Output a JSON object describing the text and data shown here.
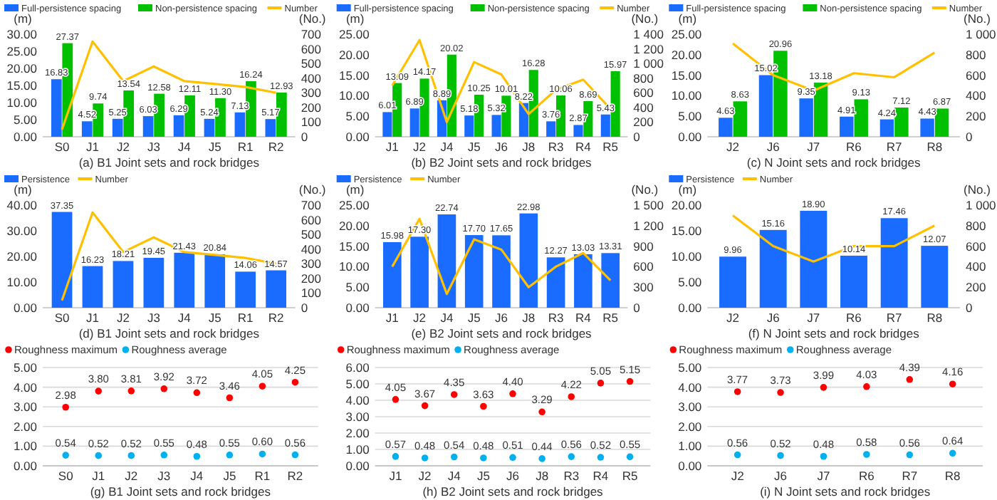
{
  "chart_data": [
    {
      "type": "bar",
      "title": "(a) B1 Joint sets and rock bridges",
      "ylabel": "(m)",
      "y2label": "(No.)",
      "legend": "top",
      "categories": [
        "S0",
        "J1",
        "J2",
        "J3",
        "J4",
        "J5",
        "R1",
        "R2"
      ],
      "ylim": [
        0,
        30
      ],
      "yticks": [
        {
          "value": 0,
          "label": "0.00"
        },
        {
          "value": 5,
          "label": "5.00"
        },
        {
          "value": 10,
          "label": "10.00"
        },
        {
          "value": 15,
          "label": "15.00"
        },
        {
          "value": 20,
          "label": "20.00"
        },
        {
          "value": 25,
          "label": "25.00"
        },
        {
          "value": 30,
          "label": "30.00"
        }
      ],
      "y2lim": [
        0,
        700
      ],
      "y2ticks": [
        0,
        100,
        200,
        300,
        400,
        500,
        600,
        700
      ],
      "series": [
        {
          "name": "Full-persistence spacing",
          "type": "bar",
          "color": "#1a6bff",
          "values": [
            16.83,
            4.52,
            5.25,
            6.03,
            6.29,
            5.24,
            7.13,
            5.17
          ],
          "value_labels": [
            "16.83",
            "4.52",
            "5.25",
            "6.03",
            "6.29",
            "5.24",
            "7.13",
            "5.17"
          ]
        },
        {
          "name": "Non-persistence spacing",
          "type": "bar",
          "color": "#00c000",
          "values": [
            27.37,
            9.74,
            13.54,
            12.58,
            12.11,
            11.3,
            16.24,
            12.93
          ],
          "value_labels": [
            "27.37",
            "9.74",
            "13.54",
            "12.58",
            "12.11",
            "11.30",
            "16.24",
            "12.93"
          ]
        },
        {
          "name": "Number",
          "type": "line",
          "axis": "y2",
          "color": "#ffc000",
          "values": [
            50,
            650,
            380,
            480,
            380,
            360,
            340,
            300
          ]
        }
      ]
    },
    {
      "type": "bar",
      "title": "(b) B2 Joint sets and rock bridges",
      "ylabel": "(m)",
      "y2label": "(No.)",
      "legend": "top",
      "categories": [
        "J1",
        "J2",
        "J4",
        "J5",
        "J6",
        "J8",
        "R3",
        "R4",
        "R5"
      ],
      "ylim": [
        0,
        25
      ],
      "yticks": [
        {
          "value": 0,
          "label": "0.00"
        },
        {
          "value": 5,
          "label": "5.00"
        },
        {
          "value": 10,
          "label": "10.00"
        },
        {
          "value": 15,
          "label": "15.00"
        },
        {
          "value": 20,
          "label": "20.00"
        },
        {
          "value": 25,
          "label": "25.00"
        }
      ],
      "y2lim": [
        0,
        1400
      ],
      "y2ticks": [
        0,
        200,
        400,
        600,
        800,
        {
          "value": 1000,
          "label": "1 000"
        },
        {
          "value": 1200,
          "label": "1 200"
        },
        {
          "value": 1400,
          "label": "1 400"
        }
      ],
      "series": [
        {
          "name": "Full-persistence spacing",
          "type": "bar",
          "color": "#1a6bff",
          "values": [
            6.01,
            6.89,
            8.89,
            5.18,
            5.32,
            8.22,
            3.76,
            2.87,
            5.43
          ],
          "value_labels": [
            "6.01",
            "6.89",
            "8.89",
            "5.18",
            "5.32",
            "8.22",
            "3.76",
            "2.87",
            "5.43"
          ]
        },
        {
          "name": "Non-persistence spacing",
          "type": "bar",
          "color": "#00c000",
          "values": [
            13.09,
            14.17,
            20.02,
            10.25,
            10.01,
            16.28,
            10.06,
            8.69,
            15.97
          ],
          "value_labels": [
            "13.09",
            "14.17",
            "20.02",
            "10.25",
            "10.01",
            "16.28",
            "10.06",
            "8.69",
            "15.97"
          ]
        },
        {
          "name": "Number",
          "type": "line",
          "axis": "y2",
          "color": "#ffc000",
          "values": [
            700,
            1320,
            200,
            1020,
            850,
            310,
            640,
            780,
            380
          ]
        }
      ]
    },
    {
      "type": "bar",
      "title": "(c) N Joint sets and rock bridges",
      "ylabel": "(m)",
      "y2label": "(No.)",
      "legend": "top",
      "categories": [
        "J2",
        "J6",
        "J7",
        "R6",
        "R7",
        "R8"
      ],
      "ylim": [
        0,
        25
      ],
      "yticks": [
        {
          "value": 0,
          "label": "0.00"
        },
        {
          "value": 5,
          "label": "5.00"
        },
        {
          "value": 10,
          "label": "10.00"
        },
        {
          "value": 15,
          "label": "15.00"
        },
        {
          "value": 20,
          "label": "20.00"
        },
        {
          "value": 25,
          "label": "25.00"
        }
      ],
      "y2lim": [
        0,
        1000
      ],
      "y2ticks": [
        0,
        200,
        400,
        600,
        800,
        {
          "value": 1000,
          "label": "1 000"
        }
      ],
      "series": [
        {
          "name": "Full-persistence spacing",
          "type": "bar",
          "color": "#1a6bff",
          "values": [
            4.63,
            15.02,
            9.35,
            4.91,
            4.24,
            4.43
          ],
          "value_labels": [
            "4.63",
            "15.02",
            "9.35",
            "4.91",
            "4.24",
            "4.43"
          ]
        },
        {
          "name": "Non-persistence spacing",
          "type": "bar",
          "color": "#00c000",
          "values": [
            8.63,
            20.96,
            13.18,
            9.13,
            7.12,
            6.87
          ],
          "value_labels": [
            "8.63",
            "20.96",
            "13.18",
            "9.13",
            "7.12",
            "6.87"
          ]
        },
        {
          "name": "Number",
          "type": "line",
          "axis": "y2",
          "color": "#ffc000",
          "values": [
            910,
            600,
            450,
            620,
            580,
            820
          ]
        }
      ]
    },
    {
      "type": "bar",
      "title": "(d) B1 Joint sets and rock bridges",
      "ylabel": "(m)",
      "y2label": "(No.)",
      "legend": "top",
      "categories": [
        "S0",
        "J1",
        "J2",
        "J3",
        "J4",
        "J5",
        "R1",
        "R2"
      ],
      "ylim": [
        0,
        40
      ],
      "yticks": [
        {
          "value": 0,
          "label": "0.00"
        },
        {
          "value": 10,
          "label": "10.00"
        },
        {
          "value": 20,
          "label": "20.00"
        },
        {
          "value": 30,
          "label": "30.00"
        },
        {
          "value": 40,
          "label": "40.00"
        }
      ],
      "y2lim": [
        0,
        700
      ],
      "y2ticks": [
        0,
        100,
        200,
        300,
        400,
        500,
        600,
        700
      ],
      "series": [
        {
          "name": "Persistence",
          "type": "bar",
          "color": "#1a6bff",
          "values": [
            37.35,
            16.23,
            18.21,
            19.45,
            21.43,
            20.84,
            14.06,
            14.57
          ],
          "value_labels": [
            "37.35",
            "16.23",
            "18.21",
            "19.45",
            "21.43",
            "20.84",
            "14.06",
            "14.57"
          ]
        },
        {
          "name": "Number",
          "type": "line",
          "axis": "y2",
          "color": "#ffc000",
          "values": [
            50,
            650,
            380,
            480,
            380,
            360,
            340,
            300
          ]
        }
      ]
    },
    {
      "type": "bar",
      "title": "(e) B2 Joint sets and rock bridges",
      "ylabel": "(m)",
      "y2label": "(No.)",
      "legend": "top",
      "categories": [
        "J1",
        "J2",
        "J4",
        "J5",
        "J6",
        "J8",
        "R3",
        "R4",
        "R5"
      ],
      "ylim": [
        0,
        25
      ],
      "yticks": [
        {
          "value": 0,
          "label": "0.00"
        },
        {
          "value": 5,
          "label": "5.00"
        },
        {
          "value": 10,
          "label": "10.00"
        },
        {
          "value": 15,
          "label": "15.00"
        },
        {
          "value": 20,
          "label": "20.00"
        },
        {
          "value": 25,
          "label": "25.00"
        }
      ],
      "y2lim": [
        0,
        1500
      ],
      "y2ticks": [
        0,
        300,
        600,
        900,
        {
          "value": 1200,
          "label": "1 200"
        },
        {
          "value": 1500,
          "label": "1 500"
        }
      ],
      "series": [
        {
          "name": "Persistence",
          "type": "bar",
          "color": "#1a6bff",
          "values": [
            15.98,
            17.3,
            22.74,
            17.7,
            17.65,
            22.98,
            12.27,
            13.03,
            13.31
          ],
          "value_labels": [
            "15.98",
            "17.30",
            "22.74",
            "17.70",
            "17.65",
            "22.98",
            "12.27",
            "13.03",
            "13.31"
          ]
        },
        {
          "name": "Number",
          "type": "line",
          "axis": "y2",
          "color": "#ffc000",
          "values": [
            600,
            1300,
            200,
            1000,
            850,
            300,
            600,
            800,
            400
          ]
        }
      ]
    },
    {
      "type": "bar",
      "title": "(f) N Joint sets and rock bridges",
      "ylabel": "(m)",
      "y2label": "(No.)",
      "legend": "top",
      "categories": [
        "J2",
        "J6",
        "J7",
        "R6",
        "R7",
        "R8"
      ],
      "ylim": [
        0,
        20
      ],
      "yticks": [
        {
          "value": 0,
          "label": "0.00"
        },
        {
          "value": 5,
          "label": "5.00"
        },
        {
          "value": 10,
          "label": "10.00"
        },
        {
          "value": 15,
          "label": "15.00"
        },
        {
          "value": 20,
          "label": "20.00"
        }
      ],
      "y2lim": [
        0,
        1000
      ],
      "y2ticks": [
        0,
        200,
        400,
        600,
        800,
        {
          "value": 1000,
          "label": "1 000"
        }
      ],
      "series": [
        {
          "name": "Persistence",
          "type": "bar",
          "color": "#1a6bff",
          "values": [
            9.96,
            15.16,
            18.9,
            10.14,
            17.46,
            12.07
          ],
          "value_labels": [
            "9.96",
            "15.16",
            "18.90",
            "10.14",
            "17.46",
            "12.07"
          ]
        },
        {
          "name": "Number",
          "type": "line",
          "axis": "y2",
          "color": "#ffc000",
          "values": [
            900,
            600,
            450,
            600,
            600,
            800
          ]
        }
      ]
    },
    {
      "type": "scatter",
      "title": "(g) B1 Joint sets and rock bridges",
      "legend": "top",
      "grid": "y",
      "marker": "circle",
      "categories": [
        "S0",
        "J1",
        "J2",
        "J3",
        "J4",
        "J5",
        "R1",
        "R2"
      ],
      "ylim": [
        0,
        5
      ],
      "yticks": [
        {
          "value": 0,
          "label": "0.00"
        },
        {
          "value": 1,
          "label": "1.00"
        },
        {
          "value": 2,
          "label": "2.00"
        },
        {
          "value": 3,
          "label": "3.00"
        },
        {
          "value": 4,
          "label": "4.00"
        },
        {
          "value": 5,
          "label": "5.00"
        }
      ],
      "series": [
        {
          "name": "Roughness maximum",
          "color": "#ff0000",
          "values": [
            2.98,
            3.8,
            3.81,
            3.92,
            3.72,
            3.46,
            4.05,
            4.25
          ],
          "value_labels": [
            "2.98",
            "3.80",
            "3.81",
            "3.92",
            "3.72",
            "3.46",
            "4.05",
            "4.25"
          ]
        },
        {
          "name": "Roughness average",
          "color": "#00b0f0",
          "values": [
            0.54,
            0.52,
            0.52,
            0.55,
            0.48,
            0.55,
            0.6,
            0.56
          ],
          "value_labels": [
            "0.54",
            "0.52",
            "0.52",
            "0.55",
            "0.48",
            "0.55",
            "0.60",
            "0.56"
          ]
        }
      ]
    },
    {
      "type": "scatter",
      "title": "(h) B2 Joint sets and rock bridges",
      "legend": "top",
      "grid": "y",
      "marker": "circle",
      "categories": [
        "J1",
        "J2",
        "J4",
        "J5",
        "J6",
        "J8",
        "R3",
        "R4",
        "R5"
      ],
      "ylim": [
        0,
        6
      ],
      "yticks": [
        {
          "value": 0,
          "label": "0.00"
        },
        {
          "value": 1,
          "label": "1.00"
        },
        {
          "value": 2,
          "label": "2.00"
        },
        {
          "value": 3,
          "label": "3.00"
        },
        {
          "value": 4,
          "label": "4.00"
        },
        {
          "value": 5,
          "label": "5.00"
        },
        {
          "value": 6,
          "label": "6.00"
        }
      ],
      "series": [
        {
          "name": "Roughness maximum",
          "color": "#ff0000",
          "values": [
            4.05,
            3.67,
            4.35,
            3.63,
            4.4,
            3.29,
            4.22,
            5.05,
            5.15
          ],
          "value_labels": [
            "4.05",
            "3.67",
            "4.35",
            "3.63",
            "4.40",
            "3.29",
            "4.22",
            "5.05",
            "5.15"
          ]
        },
        {
          "name": "Roughness average",
          "color": "#00b0f0",
          "values": [
            0.57,
            0.48,
            0.54,
            0.48,
            0.51,
            0.44,
            0.56,
            0.52,
            0.55
          ],
          "value_labels": [
            "0.57",
            "0.48",
            "0.54",
            "0.48",
            "0.51",
            "0.44",
            "0.56",
            "0.52",
            "0.55"
          ]
        }
      ]
    },
    {
      "type": "scatter",
      "title": "(i) N Joint sets and rock bridges",
      "legend": "top",
      "grid": "y",
      "marker": "circle",
      "categories": [
        "J2",
        "J6",
        "J7",
        "R6",
        "R7",
        "R8"
      ],
      "ylim": [
        0,
        5
      ],
      "yticks": [
        {
          "value": 0,
          "label": "0.00"
        },
        {
          "value": 1,
          "label": "1.00"
        },
        {
          "value": 2,
          "label": "2.00"
        },
        {
          "value": 3,
          "label": "3.00"
        },
        {
          "value": 4,
          "label": "4.00"
        },
        {
          "value": 5,
          "label": "5.00"
        }
      ],
      "series": [
        {
          "name": "Roughness maximum",
          "color": "#ff0000",
          "values": [
            3.77,
            3.73,
            3.99,
            4.03,
            4.39,
            4.16
          ],
          "value_labels": [
            "3.77",
            "3.73",
            "3.99",
            "4.03",
            "4.39",
            "4.16"
          ]
        },
        {
          "name": "Roughness average",
          "color": "#00b0f0",
          "values": [
            0.56,
            0.52,
            0.48,
            0.58,
            0.56,
            0.64
          ],
          "value_labels": [
            "0.56",
            "0.52",
            "0.48",
            "0.58",
            "0.56",
            "0.64"
          ]
        }
      ]
    }
  ]
}
